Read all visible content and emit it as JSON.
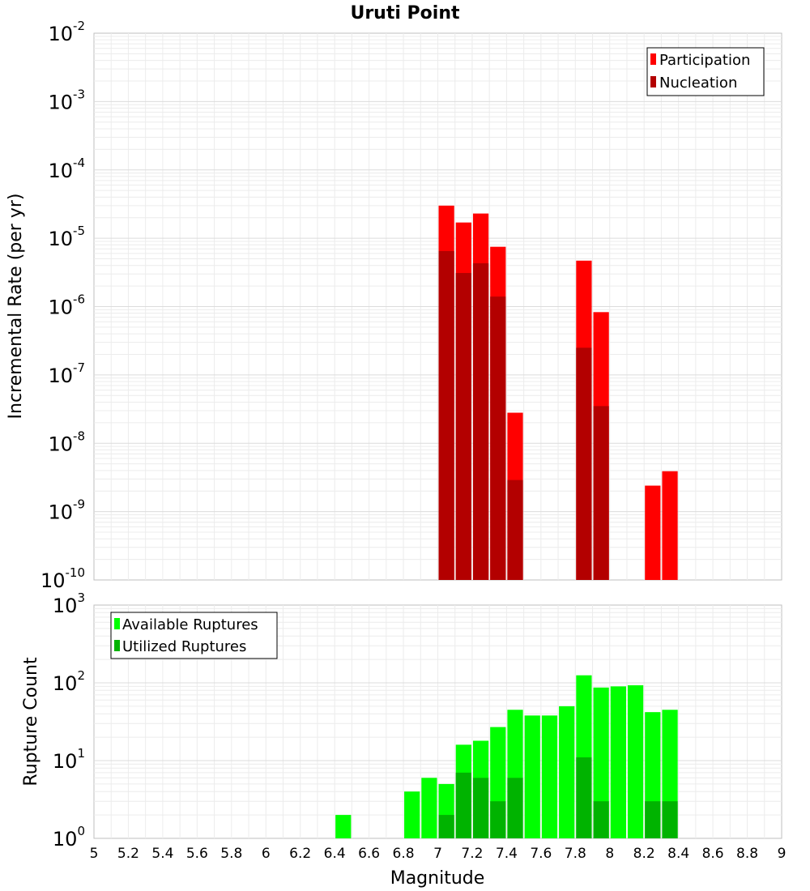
{
  "chart_data": [
    {
      "type": "bar",
      "panel": "top",
      "title": "Uruti Point",
      "xlabel": "Magnitude",
      "ylabel": "Incremental Rate (per yr)",
      "yscale": "log",
      "ylim_exp": [
        -10,
        -2
      ],
      "y_tick_exponents": [
        "-10",
        "-9",
        "-8",
        "-7",
        "-6",
        "-5",
        "-4",
        "-3",
        "-2"
      ],
      "xlim": [
        5,
        9
      ],
      "bin_width": 0.1,
      "legend": {
        "position": "top-right",
        "entries": [
          {
            "name": "Participation",
            "color": "#ff0000"
          },
          {
            "name": "Nucleation",
            "color": "#b30000"
          }
        ]
      },
      "series": [
        {
          "name": "Participation",
          "color": "#ff0000",
          "x": [
            7.05,
            7.15,
            7.25,
            7.35,
            7.45,
            7.85,
            7.95,
            8.25,
            8.35
          ],
          "values": [
            3e-05,
            1.7e-05,
            2.3e-05,
            7.5e-06,
            2.8e-08,
            4.7e-06,
            8.3e-07,
            2.4e-09,
            3.9e-09
          ]
        },
        {
          "name": "Nucleation",
          "color": "#b30000",
          "x": [
            7.05,
            7.15,
            7.25,
            7.35,
            7.45,
            7.85,
            7.95
          ],
          "values": [
            6.5e-06,
            3.1e-06,
            4.3e-06,
            1.4e-06,
            2.9e-09,
            2.5e-07,
            3.5e-08
          ]
        }
      ]
    },
    {
      "type": "bar",
      "panel": "bottom",
      "xlabel": "Magnitude",
      "ylabel": "Rupture Count",
      "yscale": "log",
      "ylim_exp": [
        0,
        3
      ],
      "y_tick_exponents": [
        "0",
        "1",
        "2",
        "3"
      ],
      "xlim": [
        5,
        9
      ],
      "x_ticks": [
        "5",
        "5.2",
        "5.4",
        "5.6",
        "5.8",
        "6",
        "6.2",
        "6.4",
        "6.6",
        "6.8",
        "7",
        "7.2",
        "7.4",
        "7.6",
        "7.8",
        "8",
        "8.2",
        "8.4",
        "8.6",
        "8.8",
        "9"
      ],
      "bin_width": 0.1,
      "legend": {
        "position": "top-left",
        "entries": [
          {
            "name": "Available Ruptures",
            "color": "#00ff00"
          },
          {
            "name": "Utilized Ruptures",
            "color": "#00b300"
          }
        ]
      },
      "series": [
        {
          "name": "Available Ruptures",
          "color": "#00ff00",
          "x": [
            6.45,
            6.65,
            6.85,
            6.95,
            7.05,
            7.15,
            7.25,
            7.35,
            7.45,
            7.55,
            7.65,
            7.75,
            7.85,
            7.95,
            8.05,
            8.15,
            8.25,
            8.35
          ],
          "values": [
            2,
            1,
            4,
            6,
            5,
            16,
            18,
            27,
            45,
            38,
            38,
            50,
            125,
            87,
            90,
            93,
            42,
            45
          ]
        },
        {
          "name": "Utilized Ruptures",
          "color": "#00b300",
          "x": [
            7.05,
            7.15,
            7.25,
            7.35,
            7.45,
            7.55,
            7.85,
            7.95,
            8.25,
            8.35
          ],
          "values": [
            2,
            7,
            6,
            3,
            6,
            1,
            11,
            3,
            3,
            3
          ]
        }
      ]
    }
  ]
}
